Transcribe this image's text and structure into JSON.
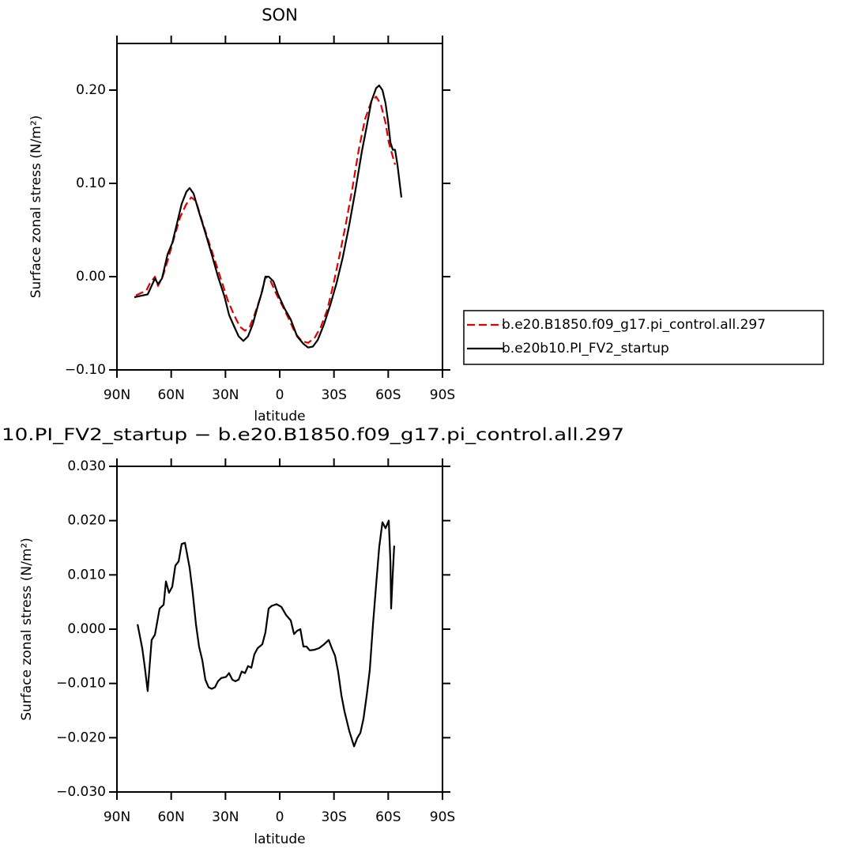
{
  "chart_data": [
    {
      "type": "line",
      "title": "SON",
      "xlabel": "latitude",
      "ylabel": "Surface zonal stress (N/m²)",
      "xlim": [
        90,
        -90
      ],
      "ylim": [
        -0.1,
        0.25
      ],
      "xticks": [
        {
          "value": 90,
          "label": "90N"
        },
        {
          "value": 60,
          "label": "60N"
        },
        {
          "value": 30,
          "label": "30N"
        },
        0,
        {
          "value": -30,
          "label": "30S"
        },
        {
          "value": -60,
          "label": "60S"
        },
        {
          "value": -90,
          "label": "90S"
        }
      ],
      "yticks": [
        {
          "value": 0.2,
          "label": "0.20"
        },
        {
          "value": 0.1,
          "label": "0.10"
        },
        {
          "value": 0,
          "label": "0.00"
        },
        {
          "value": -0.1,
          "label": "−0.10"
        }
      ],
      "legend": "outside right",
      "series": [
        {
          "name": "b.e20.B1850.f09_g17.pi_control.all.297",
          "color": "#e00000",
          "linestyle": "dashed",
          "x": [
            79.5,
            73.8,
            71.7,
            69.0,
            67.3,
            64.7,
            62.0,
            58.5,
            55.0,
            51.6,
            48.9,
            46.3,
            42.8,
            39.3,
            35.8,
            32.3,
            28.8,
            25.3,
            21.9,
            19.2,
            16.6,
            14.0,
            10.5,
            7.9,
            5.2,
            1.8,
            -1.7,
            -5.2,
            -8.7,
            -12.2,
            -15.7,
            -19.2,
            -22.7,
            -26.2,
            -29.7,
            -33.2,
            -36.7,
            -40.2,
            -43.7,
            -47.2,
            -50.7,
            -53.3,
            -55.9,
            -58.5,
            -60.3,
            -63.8
          ],
          "values": [
            -0.02,
            -0.015,
            -0.007,
            0.0,
            -0.01,
            0.0,
            0.017,
            0.041,
            0.064,
            0.078,
            0.085,
            0.081,
            0.059,
            0.038,
            0.017,
            -0.004,
            -0.025,
            -0.041,
            -0.054,
            -0.058,
            -0.054,
            -0.041,
            -0.021,
            0.0,
            -0.004,
            -0.019,
            -0.032,
            -0.046,
            -0.061,
            -0.069,
            -0.071,
            -0.066,
            -0.054,
            -0.036,
            -0.008,
            0.024,
            0.058,
            0.095,
            0.136,
            0.169,
            0.188,
            0.193,
            0.185,
            0.165,
            0.144,
            0.12
          ]
        },
        {
          "name": "b.e20b10.PI_FV2_startup",
          "color": "#000000",
          "linestyle": "solid",
          "x": [
            80.4,
            73.0,
            69.0,
            67.3,
            65.1,
            62.0,
            59.4,
            56.8,
            54.2,
            51.6,
            49.8,
            47.6,
            44.6,
            41.1,
            37.6,
            34.1,
            30.6,
            28.0,
            25.3,
            22.7,
            20.1,
            17.5,
            14.9,
            12.2,
            9.6,
            7.9,
            6.1,
            3.5,
            0.9,
            -2.6,
            -6.1,
            -9.6,
            -13.1,
            -15.7,
            -18.3,
            -21.0,
            -24.5,
            -28.0,
            -31.4,
            -34.9,
            -38.4,
            -41.9,
            -45.4,
            -48.1,
            -50.7,
            -53.3,
            -55.0,
            -56.8,
            -58.5,
            -59.8,
            -61.2,
            -62.5,
            -63.8,
            -65.1,
            -67.3
          ],
          "values": [
            -0.022,
            -0.019,
            -0.002,
            -0.008,
            -0.002,
            0.024,
            0.036,
            0.057,
            0.078,
            0.091,
            0.095,
            0.089,
            0.069,
            0.047,
            0.024,
            0.0,
            -0.021,
            -0.041,
            -0.053,
            -0.064,
            -0.069,
            -0.064,
            -0.051,
            -0.032,
            -0.015,
            0.0,
            0.0,
            -0.005,
            -0.019,
            -0.034,
            -0.046,
            -0.064,
            -0.072,
            -0.076,
            -0.075,
            -0.068,
            -0.051,
            -0.03,
            -0.007,
            0.021,
            0.055,
            0.093,
            0.134,
            0.161,
            0.188,
            0.202,
            0.205,
            0.2,
            0.186,
            0.168,
            0.144,
            0.136,
            0.136,
            0.12,
            0.085
          ]
        }
      ]
    },
    {
      "type": "line",
      "title": "10.PI_FV2_startup − b.e20.B1850.f09_g17.pi_control.all.297",
      "xlabel": "latitude",
      "ylabel": "Surface zonal stress (N/m²)",
      "xlim": [
        90,
        -90
      ],
      "ylim": [
        -0.03,
        0.03
      ],
      "xticks": [
        {
          "value": 90,
          "label": "90N"
        },
        {
          "value": 60,
          "label": "60N"
        },
        {
          "value": 30,
          "label": "30N"
        },
        0,
        {
          "value": -30,
          "label": "30S"
        },
        {
          "value": -60,
          "label": "60S"
        },
        {
          "value": -90,
          "label": "90S"
        }
      ],
      "yticks": [
        {
          "value": 0.03,
          "label": "0.030"
        },
        {
          "value": 0.02,
          "label": "0.020"
        },
        {
          "value": 0.01,
          "label": "0.010"
        },
        {
          "value": 0,
          "label": "0.000"
        },
        {
          "value": -0.01,
          "label": "−0.010"
        },
        {
          "value": -0.02,
          "label": "−0.020"
        },
        {
          "value": -0.03,
          "label": "−0.030"
        }
      ],
      "series": [
        {
          "color": "#000000",
          "linestyle": "solid",
          "x": [
            78.6,
            76.0,
            74.7,
            73.0,
            70.8,
            69.0,
            66.4,
            64.2,
            62.9,
            61.2,
            59.4,
            57.7,
            55.9,
            54.2,
            52.4,
            49.8,
            48.1,
            46.3,
            44.6,
            42.8,
            41.1,
            39.3,
            37.6,
            35.8,
            34.1,
            32.3,
            29.7,
            28.0,
            26.2,
            24.5,
            22.7,
            21.0,
            19.2,
            17.5,
            15.7,
            14.0,
            12.2,
            9.6,
            7.9,
            6.1,
            4.4,
            1.8,
            -0.9,
            -3.5,
            -6.1,
            -7.9,
            -9.6,
            -11.4,
            -13.1,
            -14.8,
            -16.6,
            -19.2,
            -21.8,
            -24.5,
            -27.1,
            -28.8,
            -30.6,
            -32.3,
            -34.1,
            -35.8,
            -38.4,
            -41.1,
            -42.8,
            -44.6,
            -46.3,
            -48.1,
            -49.8,
            -51.5,
            -53.3,
            -55.0,
            -56.8,
            -58.5,
            -60.3,
            -61.2,
            -61.6,
            -62.5,
            -63.3
          ],
          "values": [
            0.0009,
            -0.0035,
            -0.0067,
            -0.0114,
            -0.002,
            -0.001,
            0.0038,
            0.0045,
            0.0088,
            0.0067,
            0.0078,
            0.0117,
            0.0125,
            0.0157,
            0.0159,
            0.0113,
            0.0067,
            0.0009,
            -0.0032,
            -0.0057,
            -0.0093,
            -0.0107,
            -0.011,
            -0.0107,
            -0.0096,
            -0.009,
            -0.0088,
            -0.0081,
            -0.0093,
            -0.0096,
            -0.0093,
            -0.0078,
            -0.0081,
            -0.0068,
            -0.0071,
            -0.0046,
            -0.0035,
            -0.0028,
            -0.0006,
            0.0038,
            0.0043,
            0.0046,
            0.0041,
            0.0026,
            0.0016,
            -0.0009,
            -0.0003,
            0.0,
            -0.0032,
            -0.0032,
            -0.0039,
            -0.0038,
            -0.0035,
            -0.0028,
            -0.002,
            -0.0035,
            -0.0049,
            -0.0078,
            -0.0122,
            -0.0151,
            -0.0187,
            -0.0216,
            -0.0201,
            -0.0191,
            -0.0165,
            -0.0122,
            -0.0075,
            0.0006,
            0.0081,
            0.0151,
            0.0197,
            0.0186,
            0.02,
            0.0125,
            0.0038,
            0.0103,
            0.0154
          ]
        }
      ]
    }
  ]
}
